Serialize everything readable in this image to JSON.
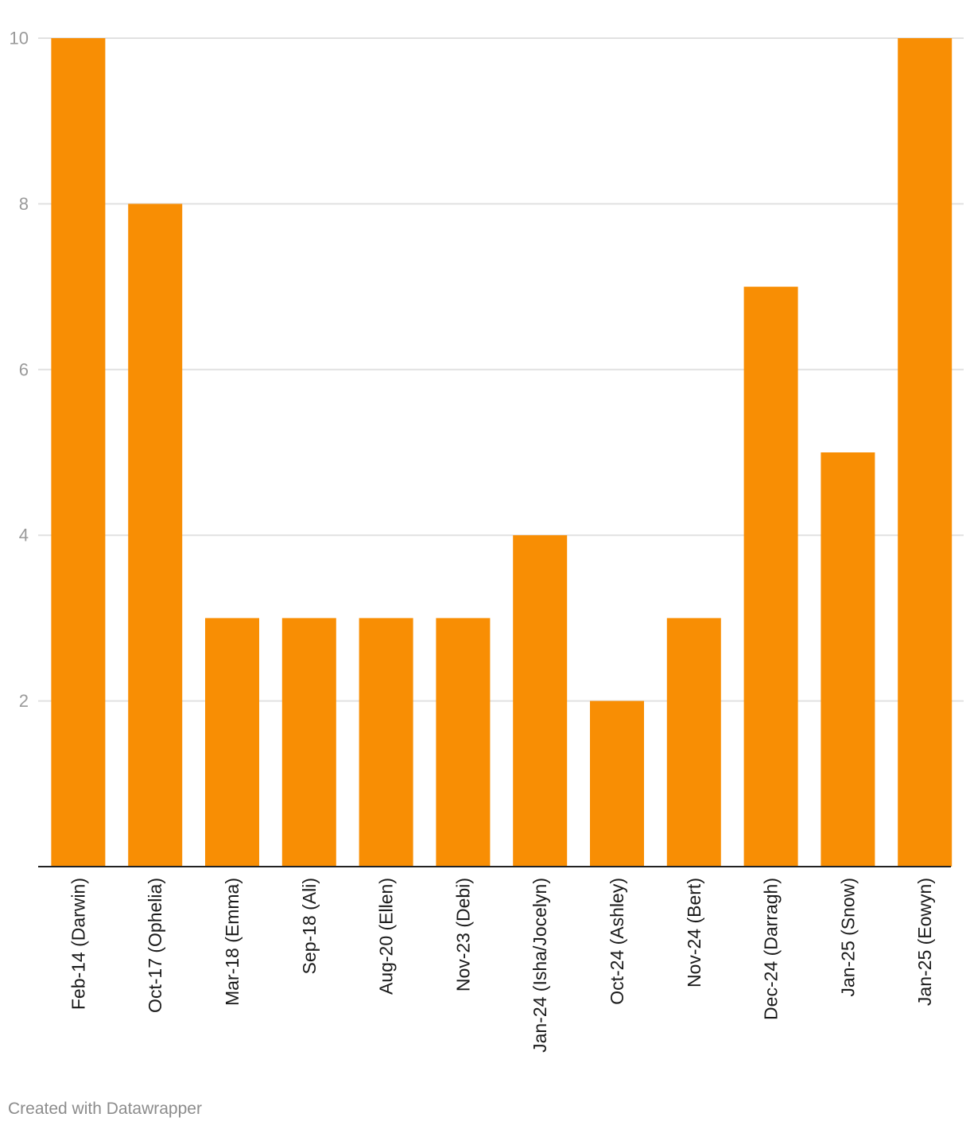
{
  "chart_data": {
    "type": "bar",
    "categories": [
      "Feb-14 (Darwin)",
      "Oct-17 (Ophelia)",
      "Mar-18 (Emma)",
      "Sep-18 (Ali)",
      "Aug-20 (Ellen)",
      "Nov-23 (Debi)",
      "Jan-24 (Isha/Jocelyn)",
      "Oct-24 (Ashley)",
      "Nov-24 (Bert)",
      "Dec-24 (Darragh)",
      "Jan-25 (Snow)",
      "Jan-25 (Eowyn)"
    ],
    "values": [
      10,
      8,
      3,
      3,
      3,
      3,
      4,
      2,
      3,
      7,
      5,
      10
    ],
    "yticks": [
      2,
      4,
      6,
      8,
      10
    ],
    "ylim": [
      0,
      10
    ],
    "grid": true,
    "bar_color": "#f88e04",
    "grid_color": "#e1e1e1",
    "axis_color": "#222222"
  },
  "footer": {
    "credit": "Created with Datawrapper"
  }
}
